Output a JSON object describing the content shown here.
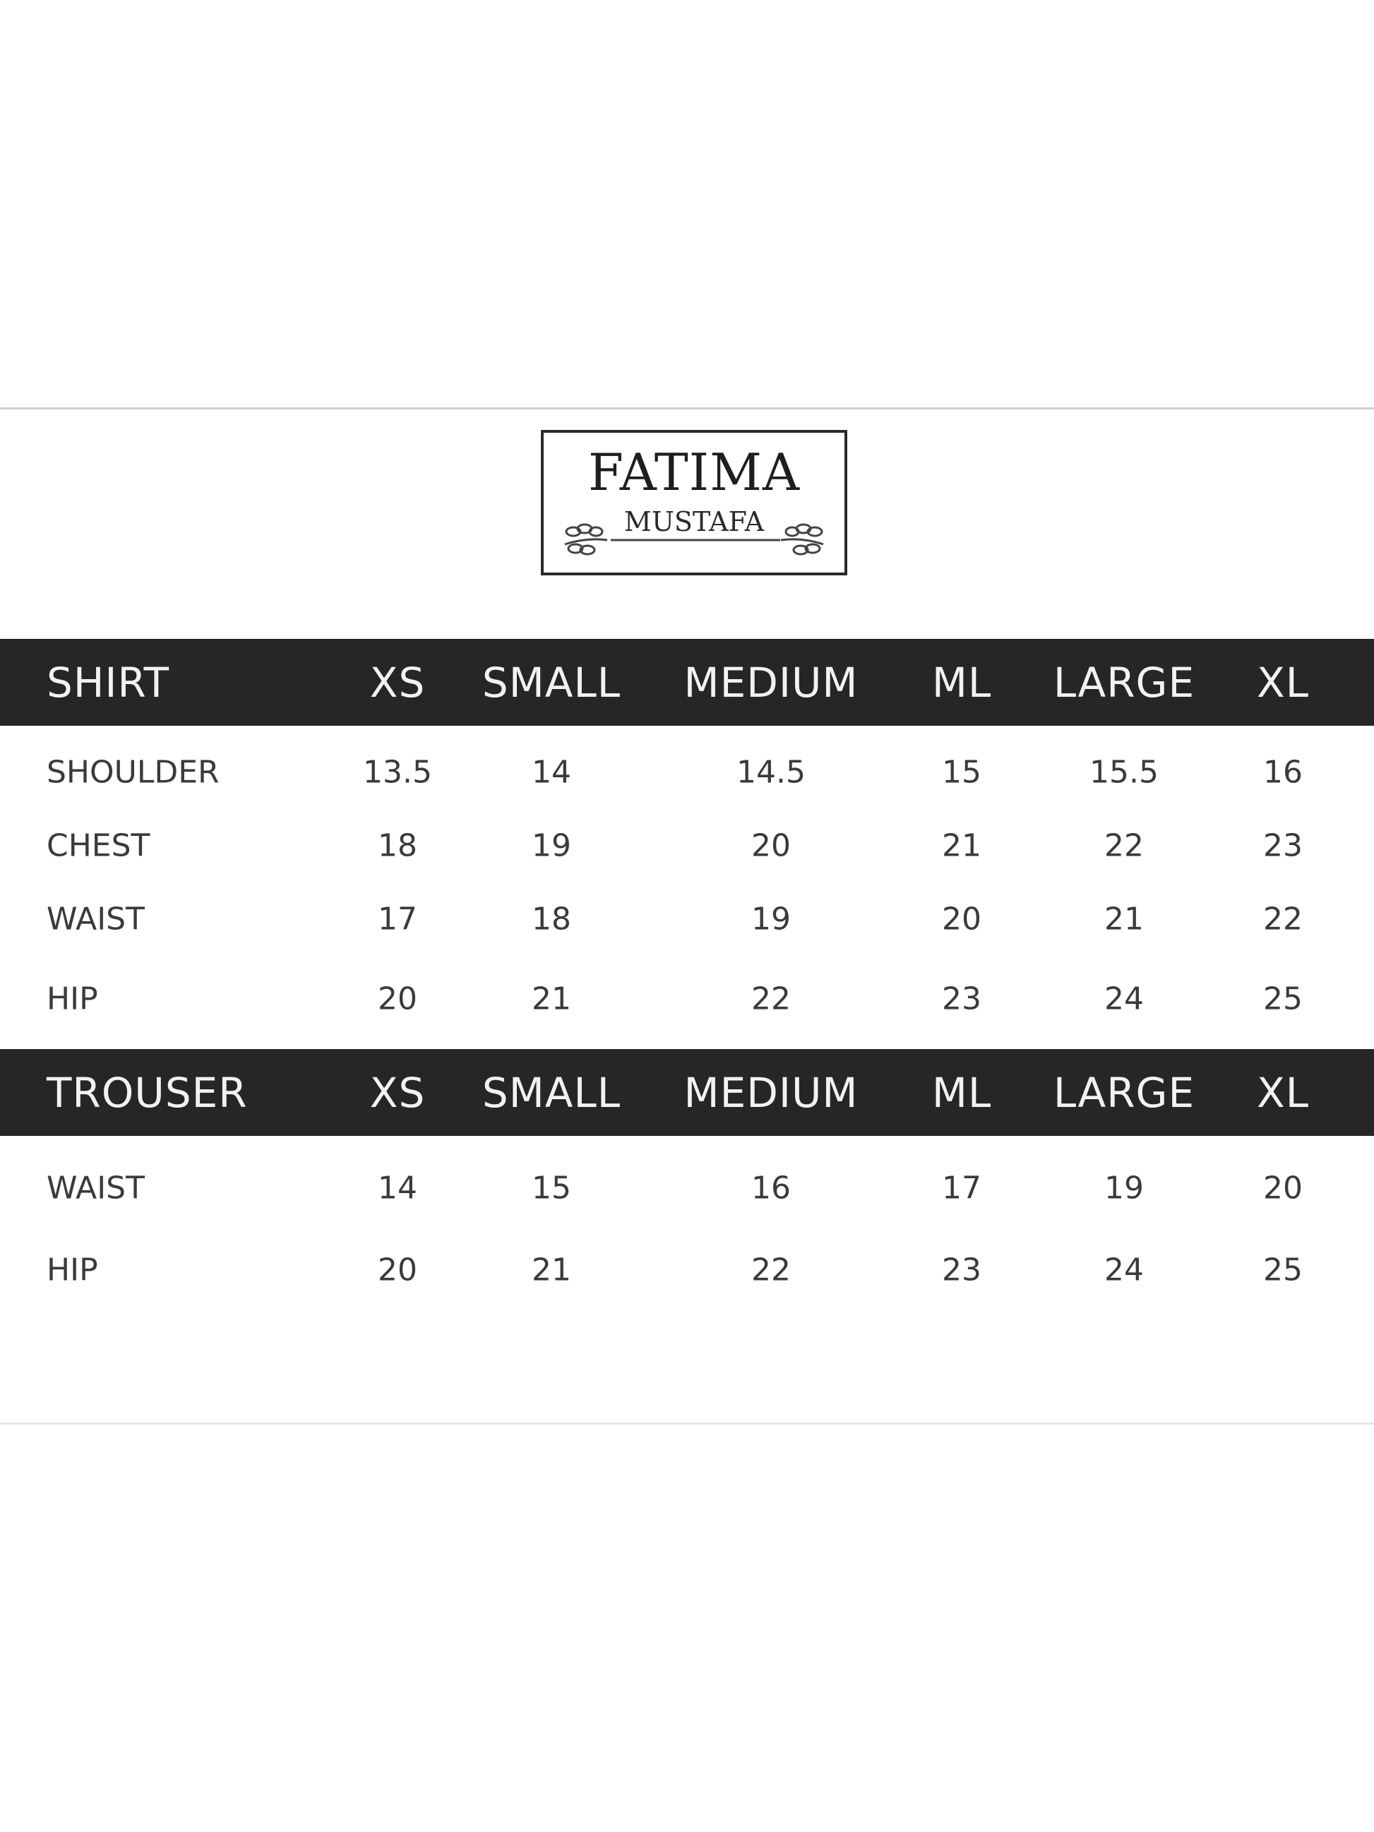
{
  "brand": {
    "line1": "FATIMA",
    "line2": "MUSTAFA"
  },
  "colors": {
    "header_bar": "#262626",
    "header_text": "#f2f2f2",
    "body_text": "#3a3a3a"
  },
  "columns": [
    "XS",
    "SMALL",
    "MEDIUM",
    "ML",
    "LARGE",
    "XL"
  ],
  "sections": [
    {
      "title": "SHIRT",
      "rows": [
        {
          "label": "SHOULDER",
          "values": [
            "13.5",
            "14",
            "14.5",
            "15",
            "15.5",
            "16"
          ]
        },
        {
          "label": "CHEST",
          "values": [
            "18",
            "19",
            "20",
            "21",
            "22",
            "23"
          ]
        },
        {
          "label": "WAIST",
          "values": [
            "17",
            "18",
            "19",
            "20",
            "21",
            "22"
          ]
        },
        {
          "label": "HIP",
          "values": [
            "20",
            "21",
            "22",
            "23",
            "24",
            "25"
          ]
        }
      ]
    },
    {
      "title": "TROUSER",
      "rows": [
        {
          "label": "WAIST",
          "values": [
            "14",
            "15",
            "16",
            "17",
            "19",
            "20"
          ]
        },
        {
          "label": "HIP",
          "values": [
            "20",
            "21",
            "22",
            "23",
            "24",
            "25"
          ]
        }
      ]
    }
  ]
}
